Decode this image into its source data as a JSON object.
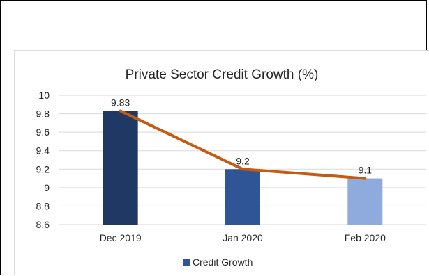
{
  "chart_data": {
    "type": "bar",
    "title": "Private Sector Credit Growth (%)",
    "categories": [
      "Dec 2019",
      "Jan 2020",
      "Feb 2020"
    ],
    "series": [
      {
        "name": "Credit Growth",
        "values": [
          9.83,
          9.2,
          9.1
        ]
      }
    ],
    "data_labels": [
      "9.83",
      "9.2",
      "9.1"
    ],
    "overlay_line": {
      "values": [
        9.83,
        9.2,
        9.1
      ],
      "color": "#c55a11"
    },
    "bar_colors": [
      "#203864",
      "#2f5597",
      "#8faadc"
    ],
    "legend_swatch_color": "#2f5597",
    "ylim": [
      8.6,
      10
    ],
    "yticks": [
      8.6,
      8.8,
      9,
      9.2,
      9.4,
      9.6,
      9.8,
      10
    ],
    "ytick_labels": [
      "8.6",
      "8.8",
      "9",
      "9.2",
      "9.4",
      "9.6",
      "9.8",
      "10"
    ],
    "grid": true,
    "grid_color": "#d9d9d9",
    "legend": "bottom",
    "xlabel": "",
    "ylabel": ""
  }
}
